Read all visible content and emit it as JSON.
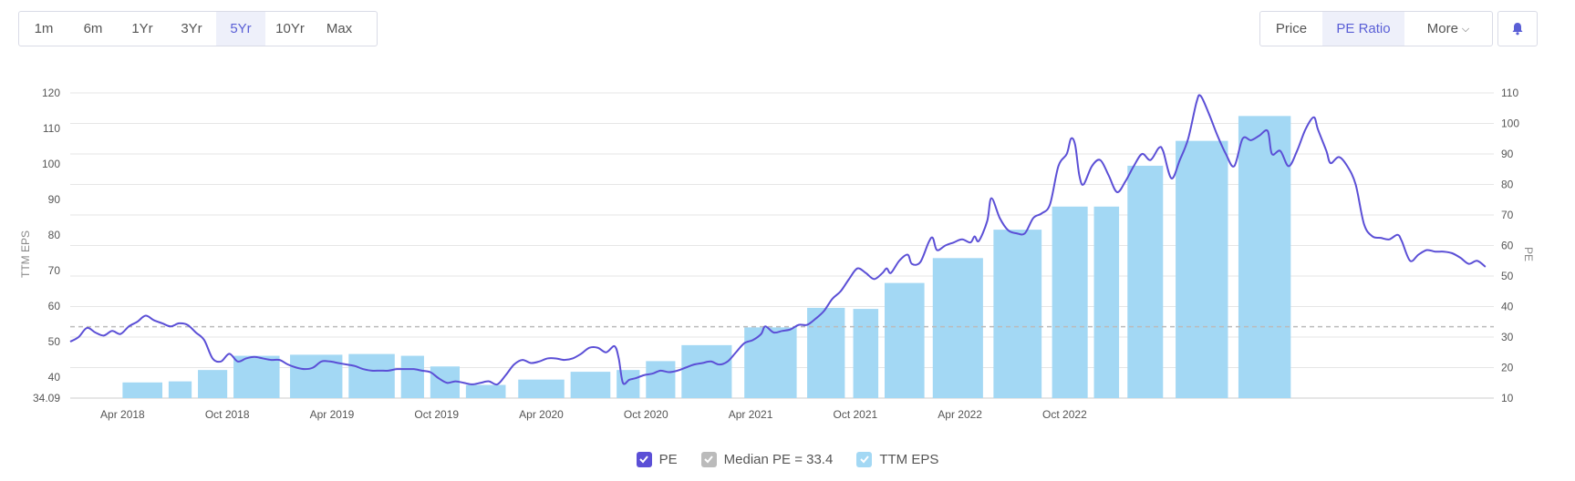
{
  "range_buttons": [
    {
      "label": "1m",
      "active": false
    },
    {
      "label": "6m",
      "active": false
    },
    {
      "label": "1Yr",
      "active": false
    },
    {
      "label": "3Yr",
      "active": false
    },
    {
      "label": "5Yr",
      "active": true
    },
    {
      "label": "10Yr",
      "active": false
    },
    {
      "label": "Max",
      "active": false
    }
  ],
  "view_buttons": [
    {
      "label": "Price",
      "active": false
    },
    {
      "label": "PE Ratio",
      "active": true
    },
    {
      "label": "More",
      "active": false
    }
  ],
  "bell_icon": "bell-icon",
  "colors": {
    "pe_line": "#5b4fd6",
    "eps_bar": "#a3d8f4",
    "median_line": "#bbbbbb",
    "active_text": "#5a5fd6",
    "grid": "#e6e6e6"
  },
  "chart_data": {
    "type": "bar+line",
    "x_ticks": [
      "Apr 2018",
      "Oct 2018",
      "Apr 2019",
      "Oct 2019",
      "Apr 2020",
      "Oct 2020",
      "Apr 2021",
      "Oct 2021",
      "Apr 2022",
      "Oct 2022"
    ],
    "left_axis": {
      "label": "TTM EPS",
      "min": 34.09,
      "max": 120,
      "ticks": [
        40,
        50,
        60,
        70,
        80,
        90,
        100,
        110,
        120
      ],
      "bottom_label": "34.09"
    },
    "right_axis": {
      "label": "PE",
      "min": 10,
      "max": 110,
      "ticks": [
        10,
        20,
        30,
        40,
        50,
        60,
        70,
        80,
        90,
        100,
        110
      ]
    },
    "eps_bars": [
      {
        "start": 2018.25,
        "end": 2018.44,
        "value": 38.5
      },
      {
        "start": 2018.47,
        "end": 2018.58,
        "value": 38.8
      },
      {
        "start": 2018.61,
        "end": 2018.75,
        "value": 42.0
      },
      {
        "start": 2018.78,
        "end": 2019.0,
        "value": 46.0
      },
      {
        "start": 2019.05,
        "end": 2019.3,
        "value": 46.3
      },
      {
        "start": 2019.33,
        "end": 2019.55,
        "value": 46.5
      },
      {
        "start": 2019.58,
        "end": 2019.69,
        "value": 46.0
      },
      {
        "start": 2019.72,
        "end": 2019.86,
        "value": 43.0
      },
      {
        "start": 2019.89,
        "end": 2020.08,
        "value": 37.8
      },
      {
        "start": 2020.14,
        "end": 2020.36,
        "value": 39.3
      },
      {
        "start": 2020.39,
        "end": 2020.58,
        "value": 41.5
      },
      {
        "start": 2020.61,
        "end": 2020.72,
        "value": 42.0
      },
      {
        "start": 2020.75,
        "end": 2020.89,
        "value": 44.5
      },
      {
        "start": 2020.92,
        "end": 2021.16,
        "value": 49.0
      },
      {
        "start": 2021.22,
        "end": 2021.47,
        "value": 54.0
      },
      {
        "start": 2021.52,
        "end": 2021.7,
        "value": 59.5
      },
      {
        "start": 2021.74,
        "end": 2021.86,
        "value": 59.2
      },
      {
        "start": 2021.89,
        "end": 2022.08,
        "value": 66.5
      },
      {
        "start": 2022.12,
        "end": 2022.36,
        "value": 73.5
      },
      {
        "start": 2022.41,
        "end": 2022.64,
        "value": 81.5
      },
      {
        "start": 2022.69,
        "end": 2022.86,
        "value": 88.0
      },
      {
        "start": 2022.89,
        "end": 2023.01,
        "value": 88.0
      },
      {
        "start": 2023.05,
        "end": 2023.22,
        "value": 99.5
      },
      {
        "start": 2023.28,
        "end": 2023.53,
        "value": 106.5
      },
      {
        "start": 2023.58,
        "end": 2023.83,
        "value": 113.5
      }
    ],
    "pe_series": {
      "name": "PE",
      "points": [
        [
          2018.0,
          28.5
        ],
        [
          2018.04,
          30
        ],
        [
          2018.08,
          33
        ],
        [
          2018.12,
          31.5
        ],
        [
          2018.16,
          30.5
        ],
        [
          2018.2,
          32
        ],
        [
          2018.24,
          31
        ],
        [
          2018.28,
          33.5
        ],
        [
          2018.32,
          35
        ],
        [
          2018.36,
          37
        ],
        [
          2018.4,
          35.5
        ],
        [
          2018.44,
          34.5
        ],
        [
          2018.48,
          33.5
        ],
        [
          2018.52,
          34.5
        ],
        [
          2018.56,
          34
        ],
        [
          2018.6,
          31.5
        ],
        [
          2018.64,
          29
        ],
        [
          2018.68,
          23
        ],
        [
          2018.72,
          22
        ],
        [
          2018.76,
          24.5
        ],
        [
          2018.8,
          22
        ],
        [
          2018.84,
          23
        ],
        [
          2018.88,
          23.5
        ],
        [
          2018.92,
          23
        ],
        [
          2018.96,
          22.5
        ],
        [
          2019.0,
          22.5
        ],
        [
          2019.04,
          21
        ],
        [
          2019.08,
          20
        ],
        [
          2019.12,
          19.5
        ],
        [
          2019.16,
          20
        ],
        [
          2019.2,
          22
        ],
        [
          2019.24,
          22
        ],
        [
          2019.28,
          21.5
        ],
        [
          2019.32,
          21
        ],
        [
          2019.36,
          20.5
        ],
        [
          2019.4,
          19.5
        ],
        [
          2019.44,
          19
        ],
        [
          2019.48,
          19
        ],
        [
          2019.52,
          19
        ],
        [
          2019.56,
          19.5
        ],
        [
          2019.6,
          19.5
        ],
        [
          2019.64,
          19.5
        ],
        [
          2019.68,
          19
        ],
        [
          2019.72,
          18.5
        ],
        [
          2019.76,
          16.5
        ],
        [
          2019.8,
          15
        ],
        [
          2019.84,
          15.5
        ],
        [
          2019.88,
          15
        ],
        [
          2019.92,
          14.5
        ],
        [
          2019.96,
          15
        ],
        [
          2020.0,
          15.5
        ],
        [
          2020.04,
          14.5
        ],
        [
          2020.08,
          17.5
        ],
        [
          2020.12,
          21
        ],
        [
          2020.16,
          22.5
        ],
        [
          2020.2,
          21.5
        ],
        [
          2020.24,
          22
        ],
        [
          2020.28,
          23
        ],
        [
          2020.32,
          23
        ],
        [
          2020.36,
          22.5
        ],
        [
          2020.4,
          23
        ],
        [
          2020.44,
          24.5
        ],
        [
          2020.48,
          26.5
        ],
        [
          2020.52,
          26.5
        ],
        [
          2020.56,
          25
        ],
        [
          2020.6,
          27
        ],
        [
          2020.62,
          23
        ],
        [
          2020.64,
          15
        ],
        [
          2020.67,
          16
        ],
        [
          2020.7,
          16.5
        ],
        [
          2020.74,
          17.5
        ],
        [
          2020.78,
          18
        ],
        [
          2020.82,
          19
        ],
        [
          2020.86,
          18.5
        ],
        [
          2020.9,
          19
        ],
        [
          2020.94,
          20
        ],
        [
          2020.98,
          21
        ],
        [
          2021.02,
          21.5
        ],
        [
          2021.06,
          22
        ],
        [
          2021.1,
          21
        ],
        [
          2021.14,
          22
        ],
        [
          2021.18,
          25
        ],
        [
          2021.22,
          28
        ],
        [
          2021.26,
          29
        ],
        [
          2021.3,
          31
        ],
        [
          2021.32,
          33.5
        ],
        [
          2021.36,
          31.5
        ],
        [
          2021.4,
          32
        ],
        [
          2021.44,
          32.5
        ],
        [
          2021.48,
          34
        ],
        [
          2021.52,
          34
        ],
        [
          2021.56,
          36
        ],
        [
          2021.6,
          38.5
        ],
        [
          2021.64,
          42.5
        ],
        [
          2021.68,
          45
        ],
        [
          2021.72,
          49
        ],
        [
          2021.76,
          52.5
        ],
        [
          2021.8,
          51
        ],
        [
          2021.84,
          49
        ],
        [
          2021.88,
          51
        ],
        [
          2021.9,
          52.5
        ],
        [
          2021.92,
          51
        ],
        [
          2021.96,
          55
        ],
        [
          2022.0,
          57
        ],
        [
          2022.02,
          54
        ],
        [
          2022.06,
          54.5
        ],
        [
          2022.1,
          61
        ],
        [
          2022.12,
          62.5
        ],
        [
          2022.14,
          58.5
        ],
        [
          2022.18,
          60
        ],
        [
          2022.22,
          61
        ],
        [
          2022.26,
          62
        ],
        [
          2022.3,
          61
        ],
        [
          2022.32,
          63
        ],
        [
          2022.34,
          61.5
        ],
        [
          2022.38,
          68
        ],
        [
          2022.4,
          75.5
        ],
        [
          2022.44,
          69
        ],
        [
          2022.48,
          65
        ],
        [
          2022.52,
          64
        ],
        [
          2022.56,
          64
        ],
        [
          2022.6,
          69
        ],
        [
          2022.64,
          70.5
        ],
        [
          2022.68,
          73.5
        ],
        [
          2022.72,
          86
        ],
        [
          2022.76,
          90
        ],
        [
          2022.78,
          95
        ],
        [
          2022.8,
          93
        ],
        [
          2022.82,
          83
        ],
        [
          2022.84,
          80
        ],
        [
          2022.88,
          86
        ],
        [
          2022.92,
          88
        ],
        [
          2022.96,
          83
        ],
        [
          2023.0,
          77.5
        ],
        [
          2023.04,
          81
        ],
        [
          2023.08,
          86
        ],
        [
          2023.12,
          90
        ],
        [
          2023.16,
          88
        ],
        [
          2023.2,
          92
        ],
        [
          2023.22,
          91
        ],
        [
          2023.26,
          82
        ],
        [
          2023.3,
          88
        ],
        [
          2023.34,
          95
        ],
        [
          2023.38,
          107
        ],
        [
          2023.4,
          109
        ],
        [
          2023.44,
          103
        ],
        [
          2023.48,
          96
        ],
        [
          2023.52,
          90
        ],
        [
          2023.56,
          86
        ],
        [
          2023.6,
          95
        ],
        [
          2023.64,
          94.5
        ],
        [
          2023.68,
          96
        ],
        [
          2023.72,
          97.5
        ],
        [
          2023.74,
          90
        ],
        [
          2023.78,
          91
        ],
        [
          2023.82,
          86
        ],
        [
          2023.86,
          91
        ],
        [
          2023.9,
          98
        ],
        [
          2023.94,
          102
        ],
        [
          2023.96,
          98
        ],
        [
          2024.0,
          91
        ],
        [
          2024.02,
          87
        ],
        [
          2024.06,
          89
        ],
        [
          2024.1,
          86
        ],
        [
          2024.14,
          80
        ],
        [
          2024.18,
          67
        ],
        [
          2024.22,
          63
        ],
        [
          2024.26,
          62.5
        ],
        [
          2024.3,
          62
        ],
        [
          2024.34,
          63.5
        ],
        [
          2024.36,
          61.5
        ],
        [
          2024.4,
          55
        ],
        [
          2024.44,
          57
        ],
        [
          2024.48,
          58.5
        ],
        [
          2024.52,
          58
        ],
        [
          2024.56,
          58
        ],
        [
          2024.6,
          57.5
        ],
        [
          2024.64,
          56
        ],
        [
          2024.68,
          54
        ],
        [
          2024.72,
          55
        ],
        [
          2024.76,
          53
        ]
      ]
    },
    "median_pe": {
      "label": "Median PE = 33.4",
      "value": 33.4
    },
    "legend": [
      {
        "label": "PE",
        "color": "#5b4fd6"
      },
      {
        "label": "Median PE = 33.4",
        "color": "#bbbbbb"
      },
      {
        "label": "TTM EPS",
        "color": "#a3d8f4"
      }
    ],
    "grid": true,
    "legend_placement": "bottom-center"
  }
}
